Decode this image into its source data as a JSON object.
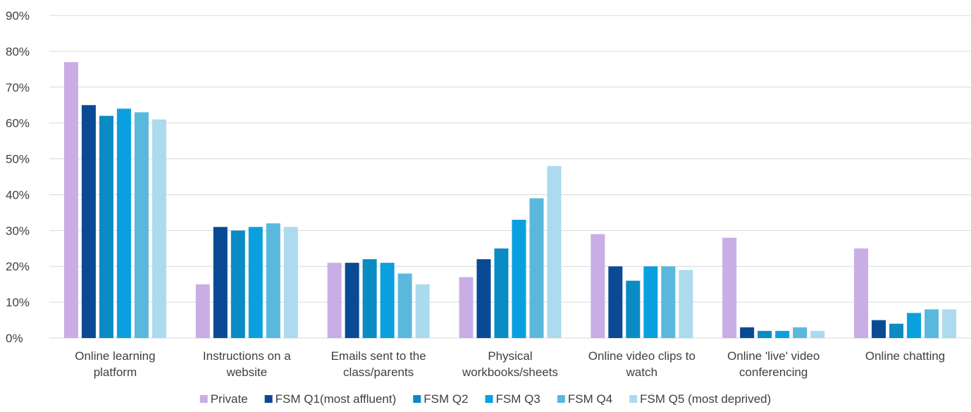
{
  "chart_data": {
    "type": "bar",
    "title": "",
    "xlabel": "",
    "ylabel": "",
    "ylim": [
      0,
      90
    ],
    "y_ticks": [
      "0%",
      "10%",
      "20%",
      "30%",
      "40%",
      "50%",
      "60%",
      "70%",
      "80%",
      "90%"
    ],
    "y_tick_values": [
      0,
      10,
      20,
      30,
      40,
      50,
      60,
      70,
      80,
      90
    ],
    "grid": true,
    "legend_position": "bottom",
    "categories": [
      [
        "Online learning",
        "platform"
      ],
      [
        "Instructions on a",
        "website"
      ],
      [
        "Emails sent to the",
        "class/parents"
      ],
      [
        "Physical",
        "workbooks/sheets"
      ],
      [
        "Online video clips to",
        "watch"
      ],
      [
        "Online 'live' video",
        "conferencing"
      ],
      [
        "Online chatting"
      ]
    ],
    "series": [
      {
        "name": "Private",
        "color": "#c9aee5",
        "values": [
          77,
          15,
          21,
          17,
          29,
          28,
          25
        ]
      },
      {
        "name": "FSM Q1(most affluent)",
        "color": "#0a4a94",
        "values": [
          65,
          31,
          21,
          22,
          20,
          3,
          5
        ]
      },
      {
        "name": "FSM Q2",
        "color": "#0a8bc4",
        "values": [
          62,
          30,
          22,
          25,
          16,
          2,
          4
        ]
      },
      {
        "name": "FSM Q3",
        "color": "#0aa0e0",
        "values": [
          64,
          31,
          21,
          33,
          20,
          2,
          7
        ]
      },
      {
        "name": "FSM Q4",
        "color": "#5ab8dd",
        "values": [
          63,
          32,
          18,
          39,
          20,
          3,
          8
        ]
      },
      {
        "name": "FSM Q5 (most deprived)",
        "color": "#acdaee",
        "values": [
          61,
          31,
          15,
          48,
          19,
          2,
          8
        ]
      }
    ]
  }
}
